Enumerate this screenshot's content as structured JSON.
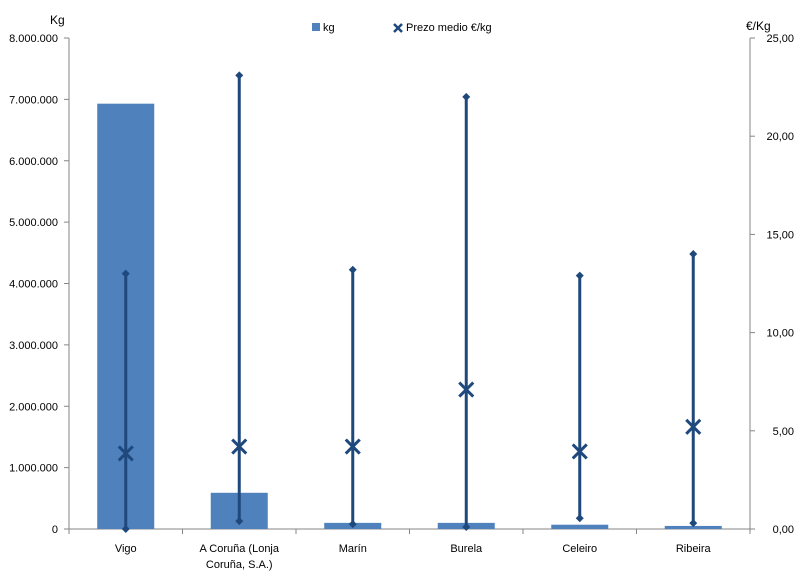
{
  "chart_data": {
    "type": "bar",
    "title": "",
    "categories": [
      "Vigo",
      "A Coruña (Lonja Coruña, S.A.)",
      "Marín",
      "Burela",
      "Celeiro",
      "Ribeira"
    ],
    "category_lines": [
      [
        "Vigo"
      ],
      [
        "A Coruña (Lonja",
        "Coruña, S.A.)"
      ],
      [
        "Marín"
      ],
      [
        "Burela"
      ],
      [
        "Celeiro"
      ],
      [
        "Ribeira"
      ]
    ],
    "ylabel": "Kg",
    "y2label": "€/Kg",
    "ylim": [
      0,
      8000000
    ],
    "y2lim": [
      0,
      25
    ],
    "yticks": [
      "0",
      "1.000.000",
      "2.000.000",
      "3.000.000",
      "4.000.000",
      "5.000.000",
      "6.000.000",
      "7.000.000",
      "8.000.000"
    ],
    "y2ticks": [
      "0,00",
      "5,00",
      "10,00",
      "15,00",
      "20,00",
      "25,00"
    ],
    "legend": {
      "position": "top-center",
      "items": [
        "kg",
        "Prezo medio €/kg"
      ]
    },
    "series": [
      {
        "name": "kg",
        "axis": "left",
        "type": "bar",
        "color": "#4F81BD",
        "values": [
          6930000,
          590000,
          100000,
          100000,
          70000,
          50000
        ]
      },
      {
        "name": "Prezo medio €/kg",
        "axis": "right",
        "type": "high-low-avg",
        "color": "#1F497D",
        "high": [
          13.0,
          23.1,
          13.2,
          22.0,
          12.9,
          14.0
        ],
        "low": [
          0.0,
          0.4,
          0.25,
          0.1,
          0.55,
          0.3
        ],
        "avg": [
          3.85,
          4.2,
          4.2,
          7.1,
          3.95,
          5.2
        ]
      }
    ]
  }
}
